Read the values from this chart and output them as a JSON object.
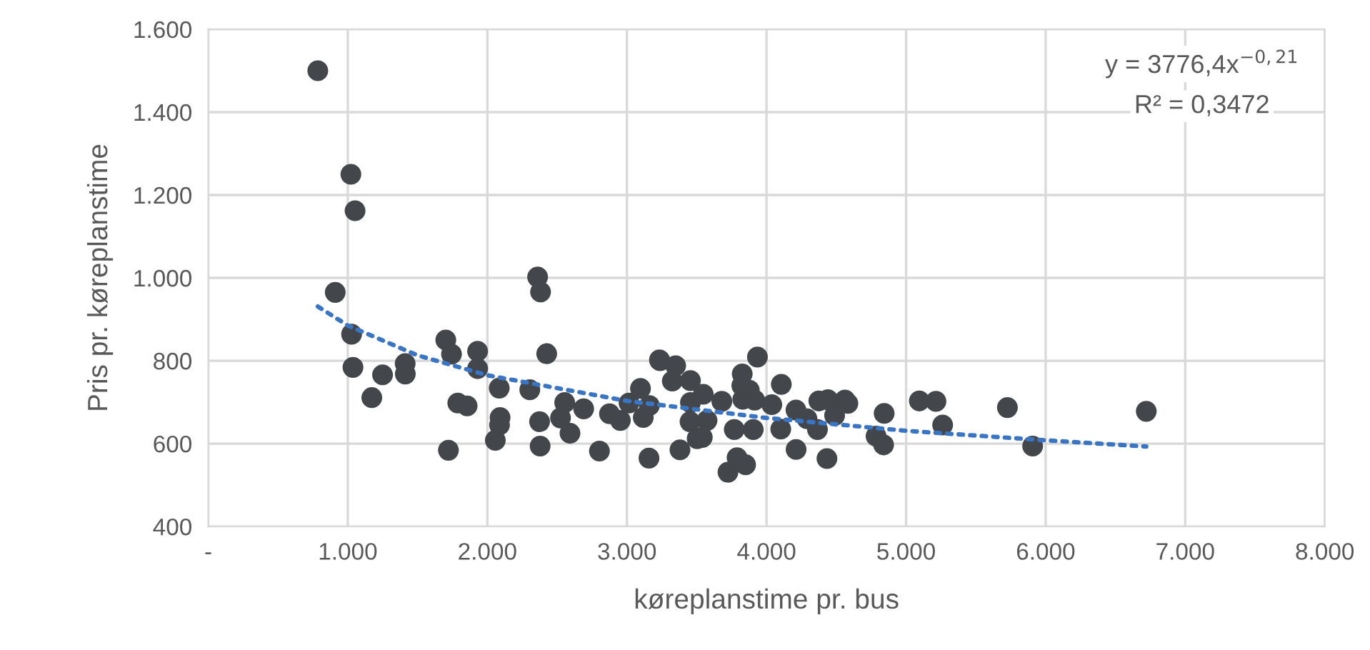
{
  "chart_data": {
    "type": "scatter",
    "xlabel": "køreplanstime pr. bus",
    "ylabel": "Pris pr. køreplanstime",
    "annotations": [
      "y = 3776,4x$^{−0,21}$",
      "R² = 0,3472"
    ],
    "series": [
      {
        "color": "#43464b",
        "marker": "circle",
        "x": [
          785,
          1022,
          1052,
          910,
          1027,
          1037,
          1249,
          1172,
          1411,
          1412,
          1702,
          1743,
          1788,
          1855,
          1721,
          1930,
          1930,
          2085,
          2091,
          2087,
          2057,
          2360,
          2381,
          2425,
          2304,
          2374,
          2378,
          2554,
          2524,
          2690,
          2592,
          2803,
          2875,
          2953,
          3161,
          3158,
          3237,
          3015,
          3097,
          3117,
          3233,
          3349,
          3325,
          3455,
          3455,
          3452,
          3503,
          3540,
          3380,
          3574,
          3547,
          3680,
          3769,
          3830,
          3826,
          3823,
          3877,
          3935,
          3789,
          3724,
          3850,
          3915,
          3905,
          4106,
          4038,
          4102,
          4211,
          4212,
          4290,
          4365,
          4375,
          4440,
          4488,
          4433,
          4562,
          4583,
          4785,
          4843,
          4839,
          5095,
          5214,
          5262,
          5726,
          5907,
          6721
        ],
        "values": [
          1500,
          1250,
          1162,
          965,
          864,
          784,
          766,
          711,
          793,
          768,
          850,
          816,
          698,
          691,
          584,
          823,
          781,
          734,
          663,
          645,
          608,
          1002,
          966,
          817,
          730,
          653,
          594,
          699,
          662,
          684,
          625,
          582,
          672,
          656,
          692,
          565,
          800,
          698,
          733,
          663,
          802,
          788,
          751,
          752,
          699,
          653,
          612,
          615,
          585,
          656,
          719,
          702,
          634,
          707,
          768,
          740,
          729,
          809,
          566,
          531,
          549,
          705,
          634,
          743,
          694,
          635,
          681,
          586,
          660,
          634,
          703,
          706,
          668,
          564,
          705,
          697,
          618,
          673,
          597,
          703,
          702,
          645,
          687,
          594,
          678
        ]
      },
      {
        "type": "line",
        "color": "#3a75c4",
        "line_style": "dotted",
        "x": [
          785,
          1000,
          1500,
          2000,
          3000,
          4000,
          5000,
          6000,
          6721
        ],
        "values": [
          931,
          885,
          813,
          765,
          703,
          662,
          631,
          608,
          593
        ]
      }
    ],
    "xlim": [
      0,
      8000
    ],
    "xticks": [
      {
        "value": 0,
        "label": "-"
      },
      {
        "value": 1000,
        "label": "1.000"
      },
      {
        "value": 2000,
        "label": "2.000"
      },
      {
        "value": 3000,
        "label": "3.000"
      },
      {
        "value": 4000,
        "label": "4.000"
      },
      {
        "value": 5000,
        "label": "5.000"
      },
      {
        "value": 6000,
        "label": "6.000"
      },
      {
        "value": 7000,
        "label": "7.000"
      },
      {
        "value": 8000,
        "label": "8.000"
      }
    ],
    "ylim": [
      400,
      1600
    ],
    "yticks": [
      400,
      600,
      800,
      {
        "value": 1000,
        "label": "1.000"
      },
      {
        "value": 1200,
        "label": "1.200"
      },
      {
        "value": 1400,
        "label": "1.400"
      },
      {
        "value": 1600,
        "label": "1.600"
      }
    ],
    "grid": true
  }
}
